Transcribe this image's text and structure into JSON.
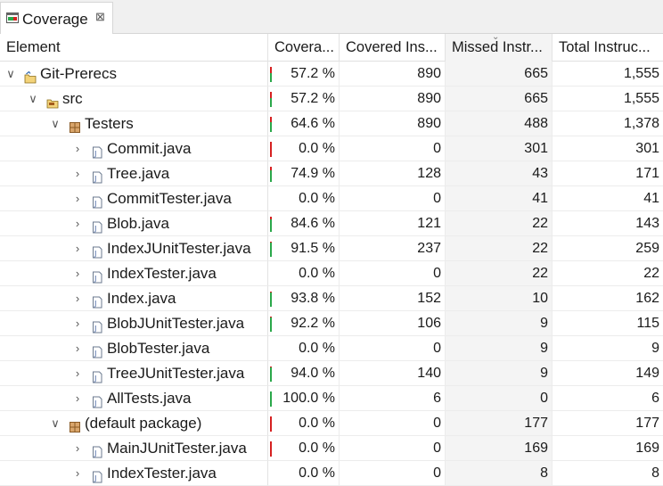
{
  "view": {
    "tab_label": "Coverage",
    "tab_close_glyph": "⊠"
  },
  "table": {
    "headers": [
      "Element",
      "Covera...",
      "Covered Ins...",
      "Missed Instr...",
      "Total Instruc..."
    ],
    "sorted_column": "Missed Instr...",
    "sort_direction": "descending",
    "rows": [
      {
        "name": "Git-Prerecs",
        "type": "project",
        "level": 0,
        "expanded": true,
        "coverage": "57.2 %",
        "covered": "890",
        "missed": "665",
        "total": "1,555"
      },
      {
        "name": "src",
        "type": "source-folder",
        "level": 1,
        "expanded": true,
        "coverage": "57.2 %",
        "covered": "890",
        "missed": "665",
        "total": "1,555"
      },
      {
        "name": "Testers",
        "type": "package",
        "level": 2,
        "expanded": true,
        "coverage": "64.6 %",
        "covered": "890",
        "missed": "488",
        "total": "1,378"
      },
      {
        "name": "Commit.java",
        "type": "java-file",
        "level": 3,
        "expanded": false,
        "coverage": "0.0 %",
        "covered": "0",
        "missed": "301",
        "total": "301"
      },
      {
        "name": "Tree.java",
        "type": "java-file",
        "level": 3,
        "expanded": false,
        "coverage": "74.9 %",
        "covered": "128",
        "missed": "43",
        "total": "171"
      },
      {
        "name": "CommitTester.java",
        "type": "java-file",
        "level": 3,
        "expanded": false,
        "coverage": "0.0 %",
        "covered": "0",
        "missed": "41",
        "total": "41"
      },
      {
        "name": "Blob.java",
        "type": "java-file",
        "level": 3,
        "expanded": false,
        "coverage": "84.6 %",
        "covered": "121",
        "missed": "22",
        "total": "143"
      },
      {
        "name": "IndexJUnitTester.java",
        "type": "java-file",
        "level": 3,
        "expanded": false,
        "coverage": "91.5 %",
        "covered": "237",
        "missed": "22",
        "total": "259"
      },
      {
        "name": "IndexTester.java",
        "type": "java-file",
        "level": 3,
        "expanded": false,
        "coverage": "0.0 %",
        "covered": "0",
        "missed": "22",
        "total": "22"
      },
      {
        "name": "Index.java",
        "type": "java-file",
        "level": 3,
        "expanded": false,
        "coverage": "93.8 %",
        "covered": "152",
        "missed": "10",
        "total": "162"
      },
      {
        "name": "BlobJUnitTester.java",
        "type": "java-file",
        "level": 3,
        "expanded": false,
        "coverage": "92.2 %",
        "covered": "106",
        "missed": "9",
        "total": "115"
      },
      {
        "name": "BlobTester.java",
        "type": "java-file",
        "level": 3,
        "expanded": false,
        "coverage": "0.0 %",
        "covered": "0",
        "missed": "9",
        "total": "9"
      },
      {
        "name": "TreeJUnitTester.java",
        "type": "java-file",
        "level": 3,
        "expanded": false,
        "coverage": "94.0 %",
        "covered": "140",
        "missed": "9",
        "total": "149"
      },
      {
        "name": "AllTests.java",
        "type": "java-file",
        "level": 3,
        "expanded": false,
        "coverage": "100.0 %",
        "covered": "6",
        "missed": "0",
        "total": "6"
      },
      {
        "name": "(default package)",
        "type": "package",
        "level": 2,
        "expanded": true,
        "coverage": "0.0 %",
        "covered": "0",
        "missed": "177",
        "total": "177"
      },
      {
        "name": "MainJUnitTester.java",
        "type": "java-file",
        "level": 3,
        "expanded": false,
        "coverage": "0.0 %",
        "covered": "0",
        "missed": "169",
        "total": "169"
      },
      {
        "name": "IndexTester.java",
        "type": "java-file",
        "level": 3,
        "expanded": false,
        "coverage": "0.0 %",
        "covered": "0",
        "missed": "8",
        "total": "8"
      }
    ]
  },
  "colors": {
    "covered_bar": "#2aa84a",
    "missed_bar": "#d62020",
    "sorted_column_bg": "#f4f4f4"
  }
}
